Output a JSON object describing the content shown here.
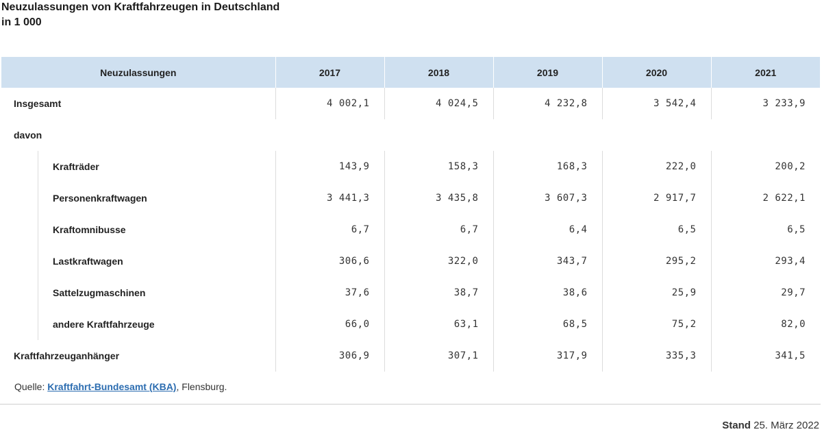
{
  "title": {
    "line1": "Neuzulassungen von Kraftfahrzeugen in Deutschland",
    "line2": "in 1 000"
  },
  "table": {
    "headers": [
      "Neuzulassungen",
      "2017",
      "2018",
      "2019",
      "2020",
      "2021"
    ],
    "rows": [
      {
        "label": "Insgesamt",
        "values": [
          "4 002,1",
          "4 024,5",
          "4 232,8",
          "3 542,4",
          "3 233,9"
        ]
      },
      {
        "label": "davon"
      },
      {
        "label": "Krafträder",
        "values": [
          "143,9",
          "158,3",
          "168,3",
          "222,0",
          "200,2"
        ]
      },
      {
        "label": "Personenkraftwagen",
        "values": [
          "3 441,3",
          "3 435,8",
          "3 607,3",
          "2 917,7",
          "2 622,1"
        ]
      },
      {
        "label": "Kraftomnibusse",
        "values": [
          "6,7",
          "6,7",
          "6,4",
          "6,5",
          "6,5"
        ]
      },
      {
        "label": "Lastkraftwagen",
        "values": [
          "306,6",
          "322,0",
          "343,7",
          "295,2",
          "293,4"
        ]
      },
      {
        "label": "Sattelzugmaschinen",
        "values": [
          "37,6",
          "38,7",
          "38,6",
          "25,9",
          "29,7"
        ]
      },
      {
        "label": "andere Kraftfahrzeuge",
        "values": [
          "66,0",
          "63,1",
          "68,5",
          "75,2",
          "82,0"
        ]
      },
      {
        "label": "Kraftfahrzeuganhänger",
        "values": [
          "306,9",
          "307,1",
          "317,9",
          "335,3",
          "341,5"
        ]
      }
    ]
  },
  "source": {
    "prefix": "Quelle: ",
    "link": "Kraftfahrt-Bundesamt (KBA)",
    "suffix": ", Flensburg."
  },
  "stand": {
    "label": "Stand",
    "date": "25. März 2022"
  }
}
